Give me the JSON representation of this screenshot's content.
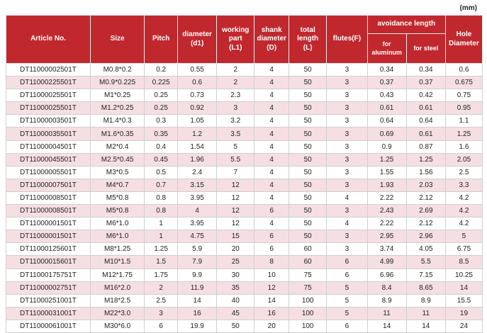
{
  "unit_label": "(mm)",
  "headers": {
    "article_no": "Article No.",
    "size": "Size",
    "pitch": "Pitch",
    "diameter_1": "diameter",
    "diameter_2": "(d1)",
    "working_1": "working",
    "working_2": "part",
    "working_3": "(L1)",
    "shank_1": "shank",
    "shank_2": "diameter",
    "shank_3": "(D)",
    "total_1": "total",
    "total_2": "length",
    "total_3": "(L)",
    "flutes": "flutes(F)",
    "avoidance": "avoidance length",
    "for_aluminum_1": "for",
    "for_aluminum_2": "aluminum",
    "for_steel": "for steel",
    "hole_1": "Hole",
    "hole_2": "Diameter"
  },
  "rows": [
    [
      "DT11000002501T",
      "M0.8*0.2",
      "0.2",
      "0.55",
      "2",
      "4",
      "50",
      "3",
      "0.34",
      "0.34",
      "0.6"
    ],
    [
      "DT11000225501T",
      "M0.9*0.225",
      "0.225",
      "0.6",
      "2",
      "4",
      "50",
      "3",
      "0.37",
      "0.37",
      "0.675"
    ],
    [
      "DT11000025501T",
      "M1*0.25",
      "0.25",
      "0.73",
      "2.3",
      "4",
      "50",
      "3",
      "0.43",
      "0.42",
      "0.75"
    ],
    [
      "DT11000025501T",
      "M1.2*0.25",
      "0.25",
      "0.92",
      "3",
      "4",
      "50",
      "3",
      "0.61",
      "0.61",
      "0.95"
    ],
    [
      "DT11000003501T",
      "M1.4*0.3",
      "0.3",
      "1.05",
      "3.2",
      "4",
      "50",
      "3",
      "0.64",
      "0.64",
      "1.1"
    ],
    [
      "DT11000035501T",
      "M1.6*0.35",
      "0.35",
      "1.2",
      "3.5",
      "4",
      "50",
      "3",
      "0.69",
      "0.61",
      "1.25"
    ],
    [
      "DT11000004501T",
      "M2*0.4",
      "0.4",
      "1.54",
      "5",
      "4",
      "50",
      "3",
      "0.9",
      "0.87",
      "1.6"
    ],
    [
      "DT11000045501T",
      "M2.5*0.45",
      "0.45",
      "1.96",
      "5.5",
      "4",
      "50",
      "3",
      "1.25",
      "1.25",
      "2.05"
    ],
    [
      "DT11000005501T",
      "M3*0.5",
      "0.5",
      "2.4",
      "7",
      "4",
      "50",
      "3",
      "1.55",
      "1.56",
      "2.5"
    ],
    [
      "DT11000007501T",
      "M4*0.7",
      "0.7",
      "3.15",
      "12",
      "4",
      "50",
      "3",
      "1.93",
      "2.03",
      "3.3"
    ],
    [
      "DT11000008501T",
      "M5*0.8",
      "0.8",
      "3.95",
      "12",
      "4",
      "50",
      "4",
      "2.22",
      "2.12",
      "4.2"
    ],
    [
      "DT11000008501T",
      "M5*0.8",
      "0.8",
      "4",
      "12",
      "6",
      "50",
      "3",
      "2.43",
      "2.69",
      "4.2"
    ],
    [
      "DT11000001501T",
      "M6*1.0",
      "1",
      "3.95",
      "12",
      "4",
      "50",
      "4",
      "2.22",
      "2.12",
      "4.2"
    ],
    [
      "DT11000001501T",
      "M6*1.0",
      "1",
      "4.75",
      "15",
      "6",
      "50",
      "3",
      "2.95",
      "2.96",
      "5"
    ],
    [
      "DT11000125601T",
      "M8*1.25",
      "1.25",
      "5.9",
      "20",
      "6",
      "60",
      "3",
      "3.74",
      "4.05",
      "6.75"
    ],
    [
      "DT11000015601T",
      "M10*1.5",
      "1.5",
      "7.9",
      "25",
      "8",
      "60",
      "6",
      "4.99",
      "5.5",
      "8.5"
    ],
    [
      "DT11000175751T",
      "M12*1.75",
      "1.75",
      "9.9",
      "30",
      "10",
      "75",
      "6",
      "6.96",
      "7.15",
      "10.25"
    ],
    [
      "DT11000002751T",
      "M16*2.0",
      "2",
      "11.9",
      "35",
      "12",
      "75",
      "5",
      "8.4",
      "8.65",
      "14"
    ],
    [
      "DT11000251001T",
      "M18*2.5",
      "2.5",
      "14",
      "40",
      "14",
      "100",
      "5",
      "8.9",
      "8.9",
      "15.5"
    ],
    [
      "DT11000031001T",
      "M22*3.0",
      "3",
      "16",
      "45",
      "16",
      "100",
      "5",
      "11",
      "11",
      "19"
    ],
    [
      "DT11000061001T",
      "M30*6.0",
      "6",
      "19.9",
      "50",
      "20",
      "100",
      "6",
      "14",
      "14",
      "24"
    ]
  ]
}
